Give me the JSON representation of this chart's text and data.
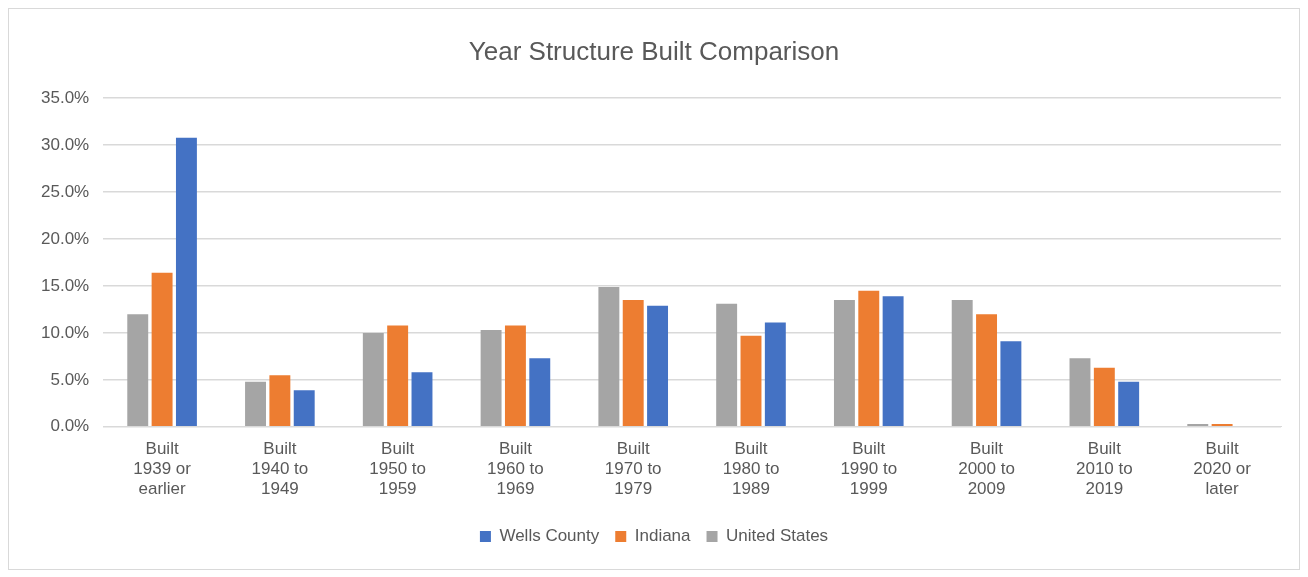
{
  "chart_data": {
    "type": "bar",
    "title": "Year Structure Built Comparison",
    "categories": [
      "Built 1939 or earlier",
      "Built 1940 to 1949",
      "Built 1950 to 1959",
      "Built 1960 to 1969",
      "Built 1970 to 1979",
      "Built 1980 to 1989",
      "Built 1990 to 1999",
      "Built 2000 to 2009",
      "Built 2010 to 2019",
      "Built 2020 or later"
    ],
    "series": [
      {
        "name": "United States",
        "color": "#a5a5a5",
        "values": [
          12.0,
          4.8,
          10.0,
          10.3,
          14.9,
          13.1,
          13.5,
          13.5,
          7.3,
          0.3
        ]
      },
      {
        "name": "Indiana",
        "color": "#ed7d31",
        "values": [
          16.4,
          5.5,
          10.8,
          10.8,
          13.5,
          9.7,
          14.5,
          12.0,
          6.3,
          0.3
        ]
      },
      {
        "name": "Wells County",
        "color": "#4472c4",
        "values": [
          30.8,
          3.9,
          5.8,
          7.3,
          12.9,
          11.1,
          13.9,
          9.1,
          4.8,
          0
        ]
      }
    ],
    "ylim": [
      0,
      35
    ],
    "yticks": [
      {
        "value": 0,
        "label": "0.0%"
      },
      {
        "value": 5,
        "label": "5.0%"
      },
      {
        "value": 10,
        "label": "10.0%"
      },
      {
        "value": 15,
        "label": "15.0%"
      },
      {
        "value": 20,
        "label": "20.0%"
      },
      {
        "value": 25,
        "label": "25.0%"
      },
      {
        "value": 30,
        "label": "30.0%"
      },
      {
        "value": 35,
        "label": "35.0%"
      }
    ],
    "grid": "y",
    "legend": "bottom"
  }
}
